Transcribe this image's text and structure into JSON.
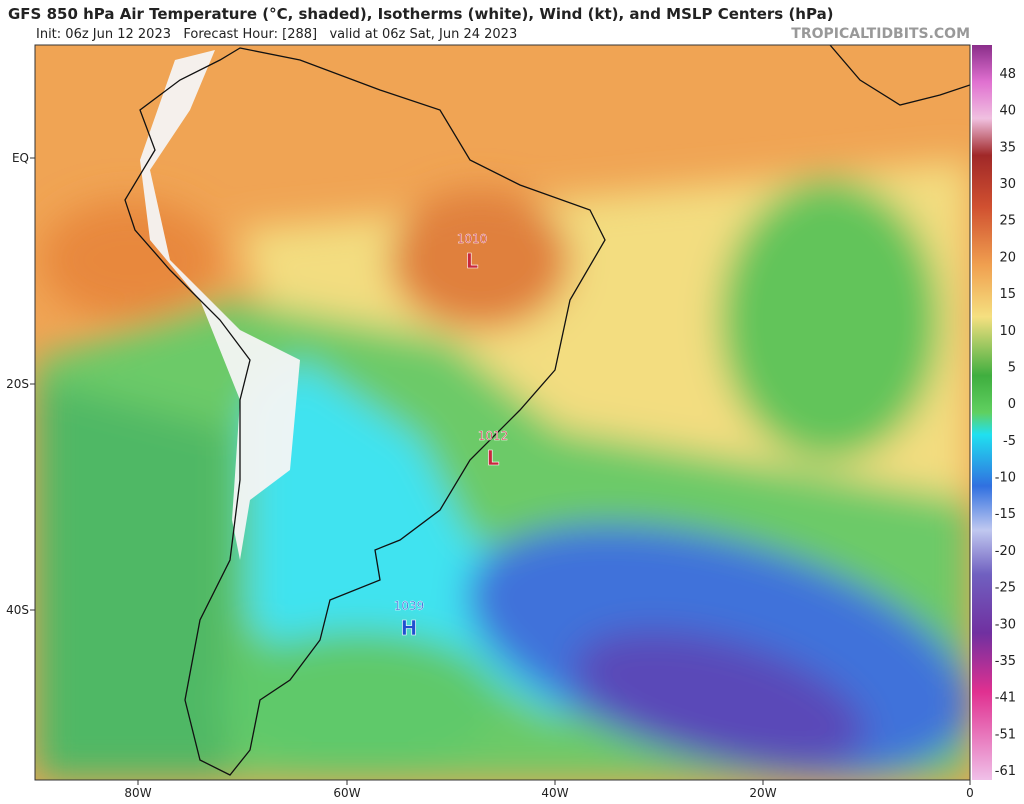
{
  "header": {
    "title": "GFS 850 hPa Air Temperature (°C, shaded), Isotherms (white), Wind (kt), and MSLP Centers (hPa)",
    "subtitle": "Init: 06z Jun 12 2023   Forecast Hour: [288]   valid at 06z Sat, Jun 24 2023",
    "watermark": "TROPICALTIDBITS.COM"
  },
  "map": {
    "lat_labels": [
      "EQ",
      "20S",
      "40S"
    ],
    "lon_labels": [
      "80W",
      "60W",
      "40W",
      "20W",
      "0"
    ],
    "pressure_centers": [
      {
        "value": 1010,
        "symbol": "L"
      },
      {
        "value": 1012,
        "symbol": "L"
      },
      {
        "value": 1039,
        "symbol": "H"
      }
    ]
  },
  "colorbar": {
    "ticks": [
      48,
      40,
      35,
      30,
      25,
      20,
      15,
      10,
      5,
      0,
      -5,
      -10,
      -15,
      -20,
      -25,
      -30,
      -35,
      -41,
      -51,
      -61
    ]
  }
}
